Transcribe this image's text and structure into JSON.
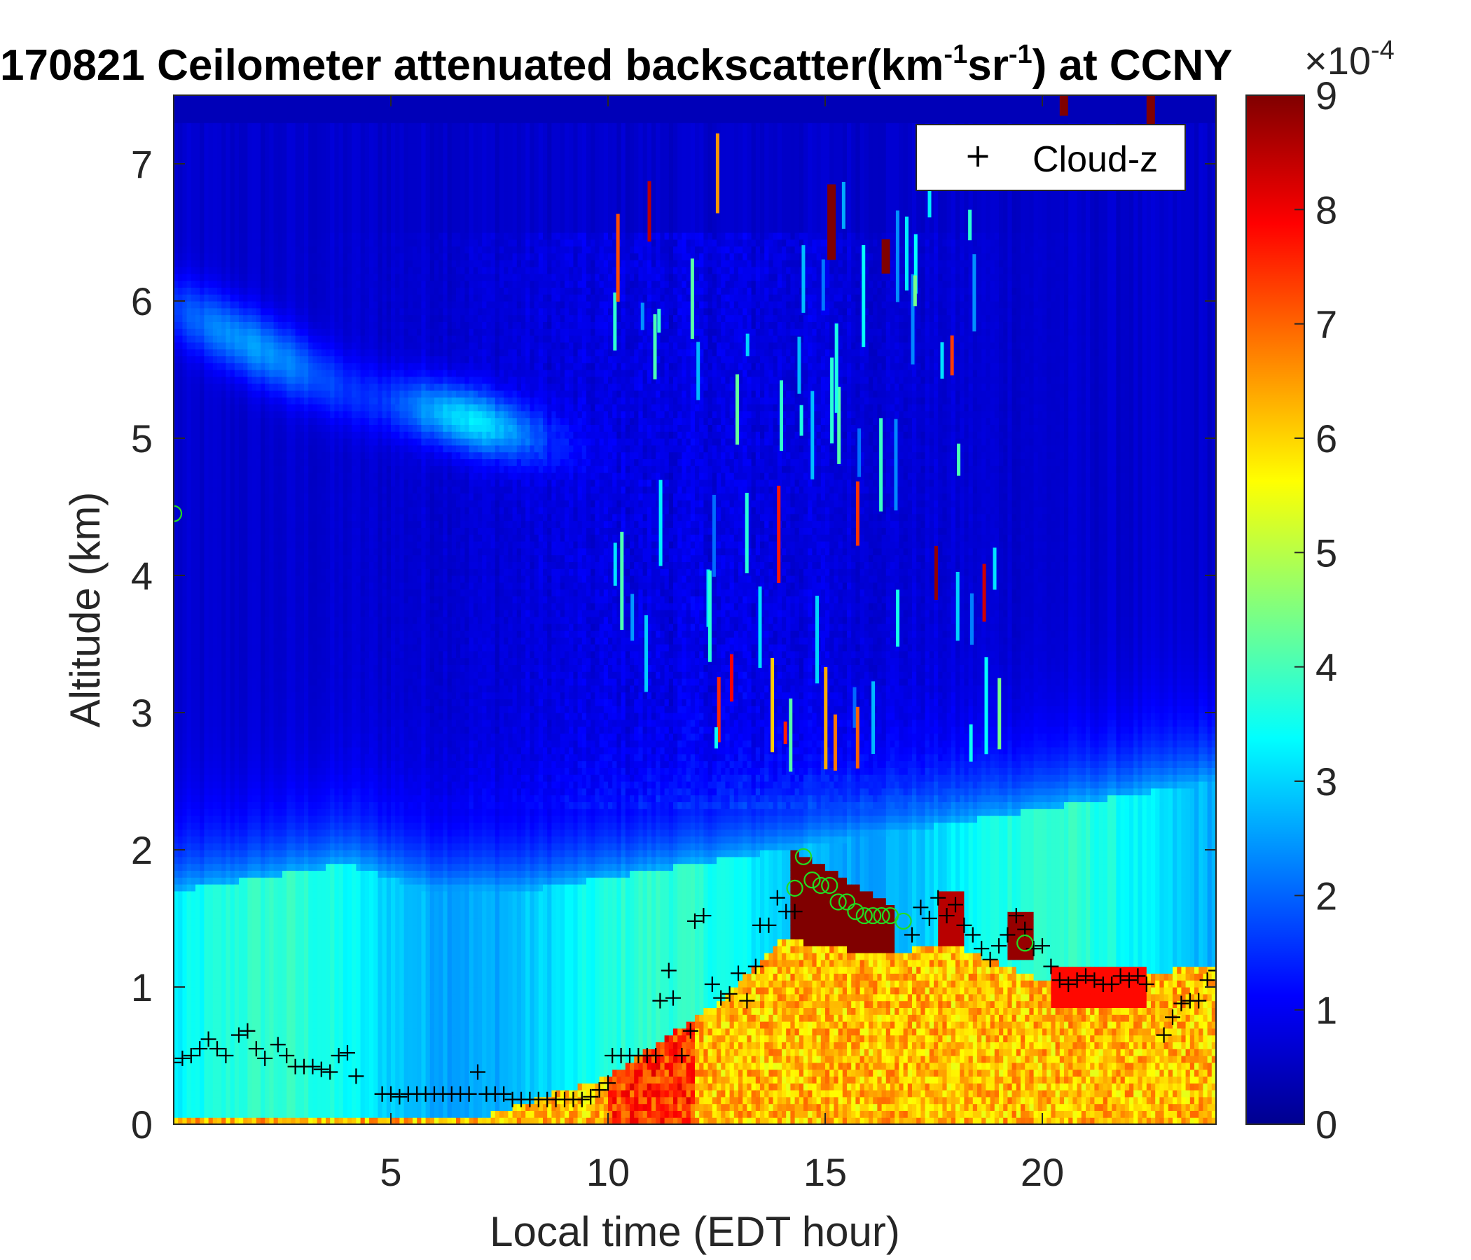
{
  "chart_data": {
    "type": "heatmap",
    "title": "170821 Ceilometer attenuated backscatter(km",
    "title_sup1": "-1",
    "title_mid": "sr",
    "title_sup2": "-1",
    "title_end": ") at CCNY",
    "xlabel": "Local time (EDT hour)",
    "ylabel": "Altitude (km)",
    "xlim": [
      0,
      24
    ],
    "ylim": [
      0,
      7.5
    ],
    "xticks": [
      5,
      10,
      15,
      20
    ],
    "yticks": [
      0,
      1,
      2,
      3,
      4,
      5,
      6,
      7
    ],
    "colorbar": {
      "colormap": "jet",
      "range": [
        0,
        9
      ],
      "ticks": [
        0,
        1,
        2,
        3,
        4,
        5,
        6,
        7,
        8,
        9
      ],
      "exponent_label": "×10",
      "exponent_sup": "-4"
    },
    "legend": {
      "label": "Cloud-z",
      "marker": "+",
      "placement": "top-right"
    },
    "colors": {
      "cloud_z_marker": "#000000",
      "pblh_marker": "#22dd22",
      "axis": "#262626"
    },
    "cloud_z": [
      [
        0.0,
        0.45
      ],
      [
        0.2,
        0.48
      ],
      [
        0.4,
        0.5
      ],
      [
        0.6,
        0.55
      ],
      [
        0.8,
        0.62
      ],
      [
        1.0,
        0.55
      ],
      [
        1.2,
        0.5
      ],
      [
        1.5,
        0.65
      ],
      [
        1.7,
        0.68
      ],
      [
        1.9,
        0.55
      ],
      [
        2.1,
        0.48
      ],
      [
        2.4,
        0.58
      ],
      [
        2.6,
        0.5
      ],
      [
        2.8,
        0.42
      ],
      [
        3.0,
        0.42
      ],
      [
        3.2,
        0.42
      ],
      [
        3.4,
        0.4
      ],
      [
        3.6,
        0.38
      ],
      [
        3.8,
        0.5
      ],
      [
        4.0,
        0.52
      ],
      [
        4.2,
        0.35
      ],
      [
        4.8,
        0.22
      ],
      [
        5.0,
        0.22
      ],
      [
        5.2,
        0.2
      ],
      [
        5.4,
        0.22
      ],
      [
        5.6,
        0.22
      ],
      [
        5.8,
        0.22
      ],
      [
        6.0,
        0.22
      ],
      [
        6.2,
        0.22
      ],
      [
        6.4,
        0.22
      ],
      [
        6.6,
        0.22
      ],
      [
        6.8,
        0.22
      ],
      [
        7.0,
        0.38
      ],
      [
        7.2,
        0.22
      ],
      [
        7.4,
        0.22
      ],
      [
        7.6,
        0.22
      ],
      [
        7.8,
        0.18
      ],
      [
        8.0,
        0.18
      ],
      [
        8.2,
        0.18
      ],
      [
        8.4,
        0.18
      ],
      [
        8.6,
        0.18
      ],
      [
        8.8,
        0.18
      ],
      [
        9.0,
        0.18
      ],
      [
        9.2,
        0.18
      ],
      [
        9.4,
        0.18
      ],
      [
        9.6,
        0.2
      ],
      [
        9.8,
        0.25
      ],
      [
        10.0,
        0.3
      ],
      [
        10.1,
        0.5
      ],
      [
        10.3,
        0.5
      ],
      [
        10.5,
        0.5
      ],
      [
        10.7,
        0.5
      ],
      [
        10.9,
        0.5
      ],
      [
        11.1,
        0.5
      ],
      [
        11.2,
        0.9
      ],
      [
        11.4,
        1.12
      ],
      [
        11.5,
        0.92
      ],
      [
        11.7,
        0.5
      ],
      [
        11.9,
        0.68
      ],
      [
        12.0,
        1.48
      ],
      [
        12.2,
        1.52
      ],
      [
        12.4,
        1.02
      ],
      [
        12.6,
        0.92
      ],
      [
        12.8,
        0.95
      ],
      [
        13.0,
        1.1
      ],
      [
        13.2,
        0.9
      ],
      [
        13.4,
        1.15
      ],
      [
        13.5,
        1.45
      ],
      [
        13.7,
        1.45
      ],
      [
        13.9,
        1.65
      ],
      [
        14.1,
        1.55
      ],
      [
        14.3,
        1.55
      ],
      [
        17.0,
        1.38
      ],
      [
        17.2,
        1.58
      ],
      [
        17.4,
        1.5
      ],
      [
        17.6,
        1.65
      ],
      [
        17.8,
        1.52
      ],
      [
        18.0,
        1.6
      ],
      [
        18.2,
        1.45
      ],
      [
        18.4,
        1.38
      ],
      [
        18.6,
        1.28
      ],
      [
        18.8,
        1.2
      ],
      [
        19.0,
        1.3
      ],
      [
        19.2,
        1.38
      ],
      [
        19.4,
        1.52
      ],
      [
        19.6,
        1.42
      ],
      [
        19.8,
        1.28
      ],
      [
        20.0,
        1.3
      ],
      [
        20.2,
        1.15
      ],
      [
        20.4,
        1.05
      ],
      [
        20.6,
        1.02
      ],
      [
        20.8,
        1.05
      ],
      [
        21.0,
        1.08
      ],
      [
        21.2,
        1.05
      ],
      [
        21.4,
        1.02
      ],
      [
        21.6,
        1.02
      ],
      [
        21.8,
        1.08
      ],
      [
        22.0,
        1.05
      ],
      [
        22.2,
        1.08
      ],
      [
        22.4,
        1.02
      ],
      [
        22.8,
        0.65
      ],
      [
        23.0,
        0.78
      ],
      [
        23.2,
        0.88
      ],
      [
        23.4,
        0.9
      ],
      [
        23.6,
        0.9
      ],
      [
        23.8,
        1.05
      ],
      [
        24.0,
        1.12
      ]
    ],
    "pblh_circles": [
      [
        0.0,
        4.45
      ],
      [
        14.3,
        1.72
      ],
      [
        14.5,
        1.95
      ],
      [
        14.7,
        1.78
      ],
      [
        14.9,
        1.74
      ],
      [
        15.1,
        1.74
      ],
      [
        15.3,
        1.62
      ],
      [
        15.5,
        1.62
      ],
      [
        15.7,
        1.55
      ],
      [
        15.9,
        1.52
      ],
      [
        16.1,
        1.52
      ],
      [
        16.3,
        1.52
      ],
      [
        16.5,
        1.52
      ],
      [
        16.8,
        1.48
      ],
      [
        19.6,
        1.32
      ]
    ]
  }
}
